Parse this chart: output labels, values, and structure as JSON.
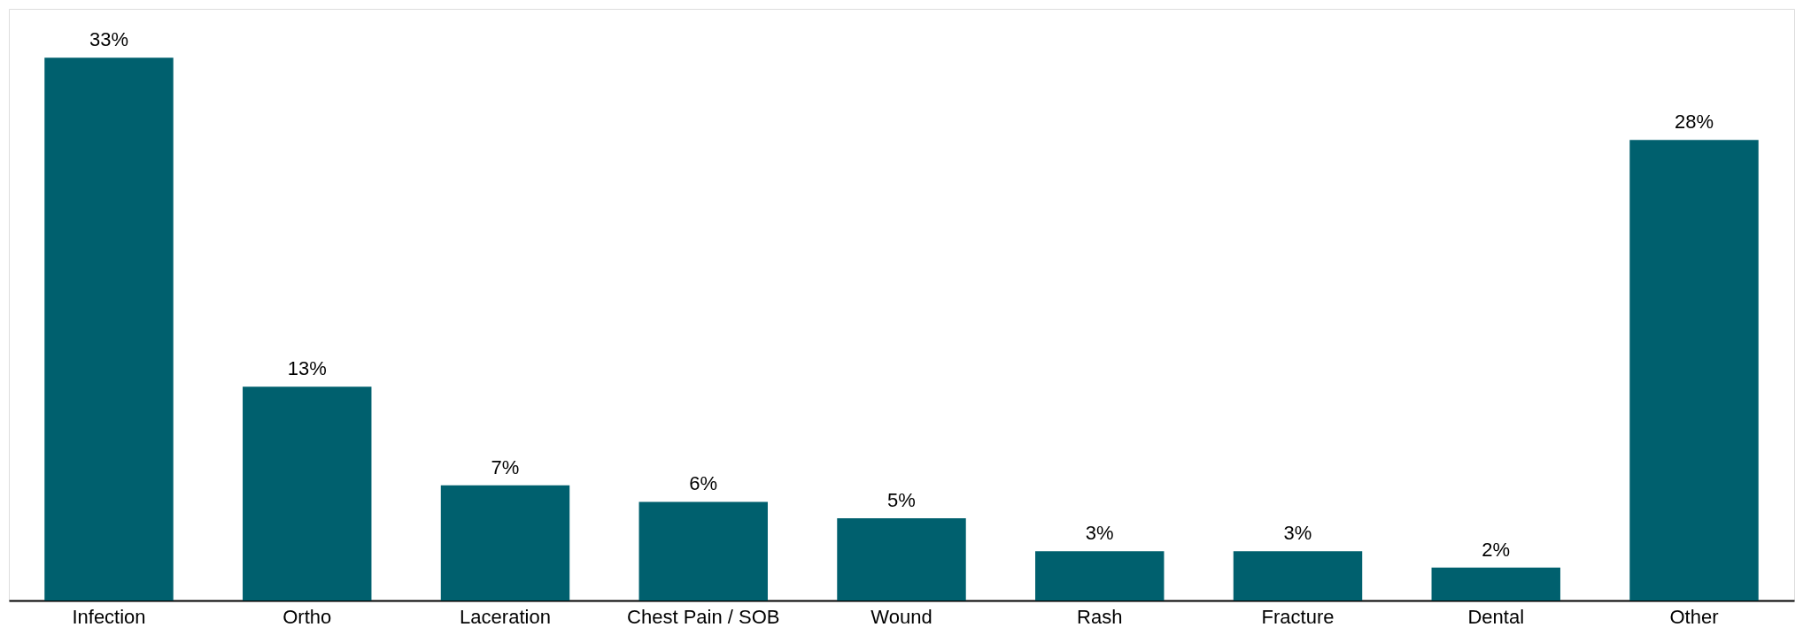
{
  "chart_data": {
    "type": "bar",
    "categories": [
      "Infection",
      "Ortho",
      "Laceration",
      "Chest Pain / SOB",
      "Wound",
      "Rash",
      "Fracture",
      "Dental",
      "Other"
    ],
    "values": [
      33,
      13,
      7,
      6,
      5,
      3,
      3,
      2,
      28
    ],
    "value_labels": [
      "33%",
      "13%",
      "7%",
      "6%",
      "5%",
      "3%",
      "3%",
      "2%",
      "28%"
    ],
    "color": "#00606e"
  }
}
